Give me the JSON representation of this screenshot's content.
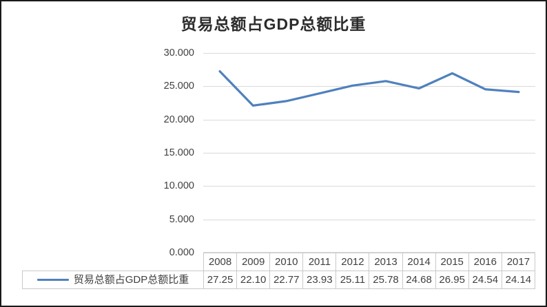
{
  "chart_data": {
    "type": "line",
    "title": "贸易总额占GDP总额比重",
    "categories": [
      "2008",
      "2009",
      "2010",
      "2011",
      "2012",
      "2013",
      "2014",
      "2015",
      "2016",
      "2017"
    ],
    "series": [
      {
        "name": "贸易总额占GDP总额比重",
        "values": [
          27.25,
          22.1,
          22.77,
          23.93,
          25.11,
          25.78,
          24.68,
          26.95,
          24.54,
          24.14
        ],
        "display_values": [
          "27.25",
          "22.10",
          "22.77",
          "23.93",
          "25.11",
          "25.78",
          "24.68",
          "26.95",
          "24.54",
          "24.14"
        ]
      }
    ],
    "ylim": [
      0,
      30
    ],
    "ytick_step": 5,
    "ytick_labels": [
      "0.000",
      "5.000",
      "10.000",
      "15.000",
      "20.000",
      "25.000",
      "30.000"
    ],
    "grid": true,
    "legend_position": "bottom-table",
    "colors": {
      "line": "#4F81BD",
      "grid": "#D9D9D9",
      "table_border": "#C9C9C9",
      "text": "#404040",
      "title_text": "#2B2B2B"
    }
  }
}
